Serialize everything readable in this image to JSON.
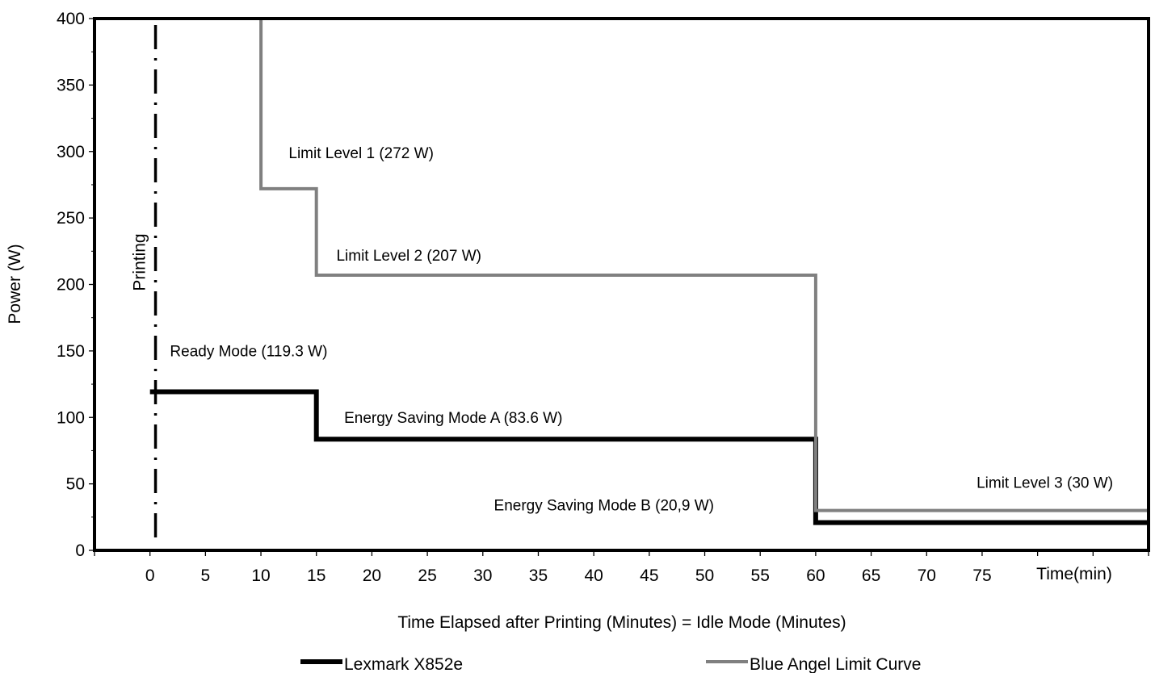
{
  "chart_data": {
    "type": "line",
    "title": "",
    "xlabel": "Time Elapsed after Printing (Minutes) = Idle Mode (Minutes)",
    "ylabel": "Power (W)",
    "x_axis_end_label": "Time(min)",
    "xlim": [
      -5,
      90
    ],
    "ylim": [
      0,
      400
    ],
    "x_ticks": [
      0,
      5,
      10,
      15,
      20,
      25,
      30,
      35,
      40,
      45,
      50,
      55,
      60,
      65,
      70,
      75
    ],
    "y_ticks": [
      0,
      50,
      100,
      150,
      200,
      250,
      300,
      350,
      400
    ],
    "grid": false,
    "legend_position": "bottom",
    "series": [
      {
        "name": "Lexmark X852e",
        "color": "#000000",
        "points": [
          [
            0,
            119.3
          ],
          [
            15,
            119.3
          ],
          [
            15,
            83.6
          ],
          [
            60,
            83.6
          ],
          [
            60,
            20.9
          ],
          [
            90,
            20.9
          ]
        ]
      },
      {
        "name": "Blue Angel Limit Curve",
        "color": "#808080",
        "points": [
          [
            10,
            400
          ],
          [
            10,
            272
          ],
          [
            15,
            272
          ],
          [
            15,
            207
          ],
          [
            60,
            207
          ],
          [
            60,
            30
          ],
          [
            90,
            30
          ]
        ]
      }
    ],
    "printing_marker": {
      "x": 0.5,
      "label": "Printing"
    },
    "annotations": [
      {
        "id": "limit1",
        "text": "Limit Level 1 (272 W)",
        "x": 12.5,
        "y": 295
      },
      {
        "id": "limit2",
        "text": "Limit Level  2 (207 W)",
        "x": 16.8,
        "y": 218
      },
      {
        "id": "ready",
        "text": "Ready Mode (119.3 W)",
        "x": 1.8,
        "y": 146
      },
      {
        "id": "esa",
        "text": "Energy Saving Mode A (83.6 W)",
        "x": 17.5,
        "y": 96
      },
      {
        "id": "esb",
        "text": "Energy Saving Mode B (20,9 W)",
        "x": 31,
        "y": 30
      },
      {
        "id": "limit3",
        "text": "Limit Level 3 (30 W)",
        "x": 74.5,
        "y": 47
      }
    ]
  }
}
